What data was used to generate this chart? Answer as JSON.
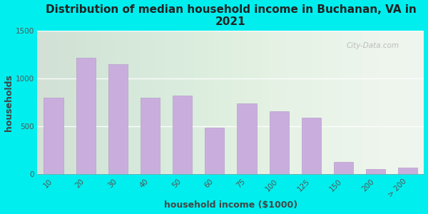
{
  "title": "Distribution of median household income in Buchanan, VA in\n2021",
  "xlabel": "household income ($1000)",
  "ylabel": "households",
  "background_color": "#00EEEE",
  "bar_color": "#c9aedd",
  "bar_edge_color": "#b090c8",
  "categories": [
    "10",
    "20",
    "30",
    "40",
    "50",
    "60",
    "75",
    "100",
    "125",
    "150",
    "200",
    "> 200"
  ],
  "values": [
    800,
    1220,
    1150,
    800,
    820,
    490,
    740,
    660,
    590,
    130,
    55,
    70
  ],
  "ylim": [
    0,
    1500
  ],
  "yticks": [
    0,
    500,
    1000,
    1500
  ],
  "watermark": "City-Data.com",
  "title_fontsize": 11,
  "axis_label_fontsize": 9,
  "tick_fontsize": 7.5
}
